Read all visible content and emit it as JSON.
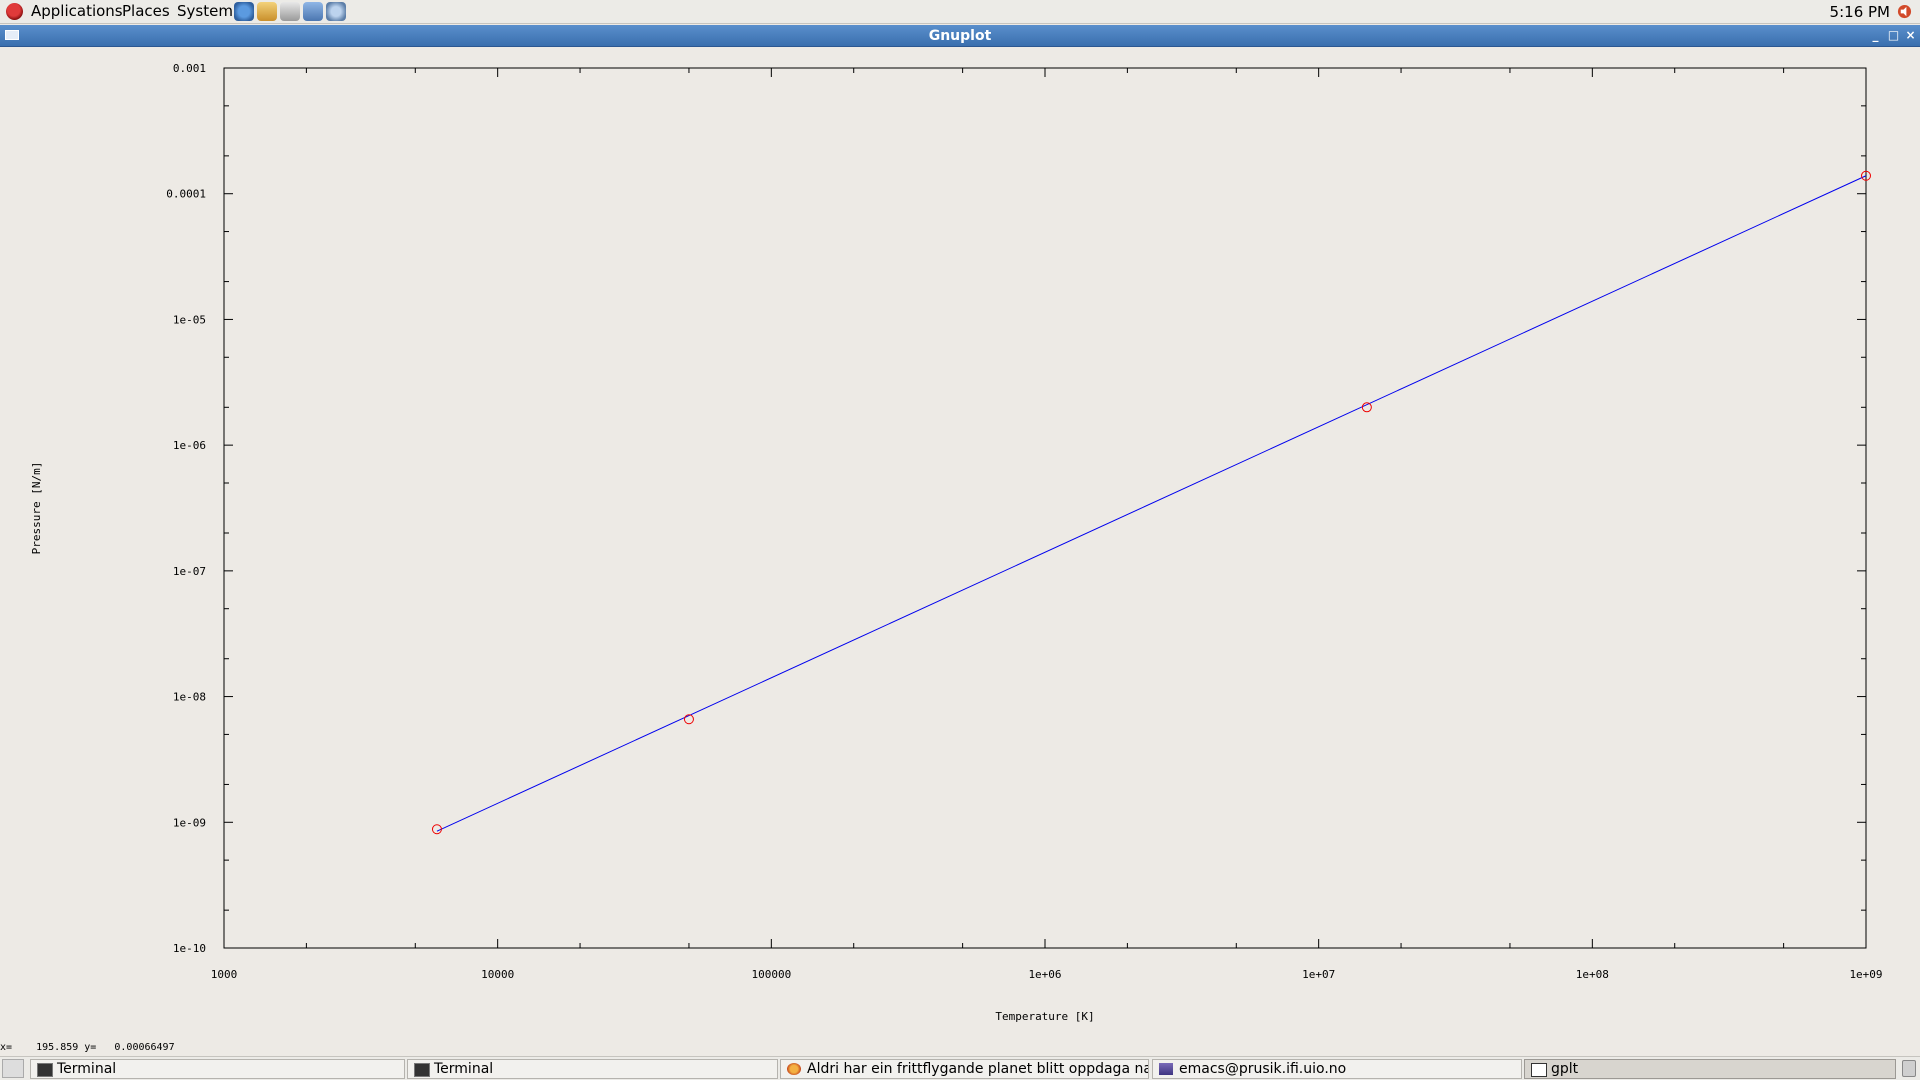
{
  "top_panel": {
    "menus": [
      "Applications",
      "Places",
      "System"
    ],
    "launchers": [
      "web-browser-icon",
      "mail-icon",
      "text-editor-icon",
      "presentation-icon",
      "network-icon"
    ],
    "clock": "5:16 PM"
  },
  "window": {
    "title": "Gnuplot"
  },
  "status_bar": {
    "text": "x=    195.859 y=   0.00066497"
  },
  "chart_data": {
    "type": "line",
    "xlabel": "Temperature [K]",
    "ylabel": "Pressure [N/m]",
    "x_scale": "log",
    "y_scale": "log",
    "xlim": [
      1000,
      1000000000
    ],
    "ylim": [
      1e-10,
      0.001
    ],
    "x_ticks": [
      "1000",
      "10000",
      "100000",
      "1e+06",
      "1e+07",
      "1e+08",
      "1e+09"
    ],
    "y_ticks": [
      "0.001",
      "0.0001",
      "1e-05",
      "1e-06",
      "1e-07",
      "1e-08",
      "1e-09",
      "1e-10"
    ],
    "grid": false,
    "series": [
      {
        "color": "#0000ee",
        "style": "line",
        "points": [
          [
            6000,
            8.5e-10
          ],
          [
            1000000000,
            0.000139
          ]
        ]
      },
      {
        "color": "#ee0000",
        "style": "circle-points",
        "points": [
          [
            6000,
            8.8e-10
          ],
          [
            50000,
            6.6e-09
          ],
          [
            15000000,
            2e-06
          ],
          [
            1000000000,
            0.000139
          ]
        ]
      }
    ]
  },
  "taskbar": {
    "tasks": [
      {
        "label": "Terminal",
        "icon": "terminal-icon",
        "active": false
      },
      {
        "label": "Terminal",
        "icon": "terminal-icon",
        "active": false
      },
      {
        "label": "Aldri har ein frittflygande planet blitt oppdaga nær...",
        "icon": "firefox-icon",
        "active": false
      },
      {
        "label": "emacs@prusik.ifi.uio.no",
        "icon": "emacs-icon",
        "active": false
      },
      {
        "label": "gplt",
        "icon": "window-icon",
        "active": true
      }
    ]
  }
}
